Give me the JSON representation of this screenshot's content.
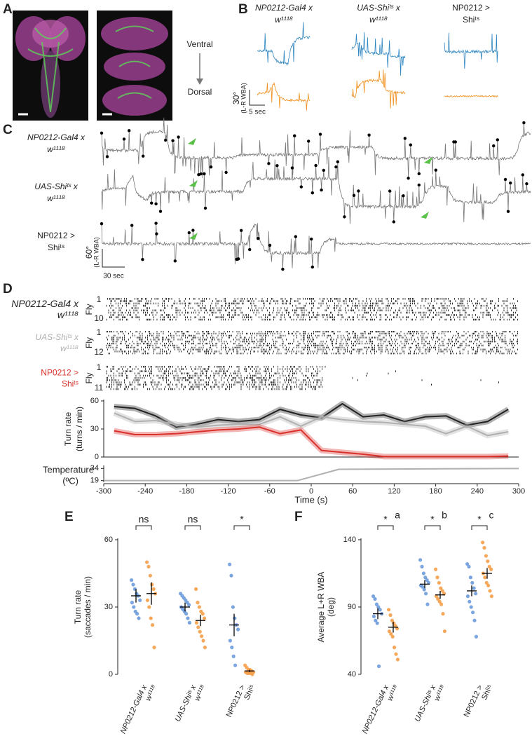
{
  "panel_labels": [
    "A",
    "B",
    "C",
    "D",
    "E",
    "F"
  ],
  "orientation": {
    "top": "Ventral",
    "bottom": "Dorsal"
  },
  "genotypes": [
    {
      "line1": "NP0212-Gal4 x",
      "line2": "w¹¹¹⁸"
    },
    {
      "line1": "UAS-Shiᵗˢ x",
      "line2": "w¹¹¹⁸"
    },
    {
      "line1": "NP0212 >",
      "line2": "Shiᵗˢ"
    }
  ],
  "panel_b_scale": {
    "amplitude": "30°",
    "unit": "(L-R WBA)",
    "time": "5 sec"
  },
  "panel_c_scale": {
    "amplitude": "60°",
    "unit": "(L-R WBA)",
    "time": "30 sec"
  },
  "raster": {
    "axis_label": "Fly",
    "rows": [
      {
        "first": "1",
        "last": "10"
      },
      {
        "first": "1",
        "last": "12"
      },
      {
        "first": "1",
        "last": "11"
      }
    ]
  },
  "chart_data": [
    {
      "type": "line",
      "ylabel": "Turn rate",
      "ylabel_unit": "(turns / min)",
      "x": [
        -285,
        -255,
        -225,
        -195,
        -165,
        -135,
        -105,
        -75,
        -45,
        -15,
        15,
        45,
        75,
        105,
        135,
        165,
        195,
        225,
        255,
        285
      ],
      "xlim": [
        -300,
        300
      ],
      "ylim": [
        0,
        60
      ],
      "yticks": [
        0,
        30,
        60
      ],
      "series": [
        {
          "color": "#222222",
          "values": [
            54,
            52,
            44,
            32,
            35,
            40,
            38,
            40,
            51,
            45,
            42,
            57,
            43,
            45,
            38,
            43,
            44,
            34,
            38,
            51
          ]
        },
        {
          "color": "#b0b0b0",
          "values": [
            47,
            38,
            39,
            35,
            32,
            34,
            35,
            35,
            43,
            33,
            43,
            40,
            38,
            37,
            35,
            33,
            25,
            33,
            23,
            27
          ]
        },
        {
          "color": "#d9302c",
          "values": [
            28,
            24,
            24,
            25,
            27,
            29,
            30,
            32,
            25,
            29,
            7,
            5,
            3,
            0.5,
            0.5,
            0.5,
            0.5,
            0.5,
            0.5,
            1
          ]
        }
      ]
    },
    {
      "type": "line",
      "ylabel": "Temperature",
      "ylabel_unit": "(ºC)",
      "xlabel": "Time (s)",
      "x": [
        -300,
        -20,
        40,
        300
      ],
      "xlim": [
        -300,
        300
      ],
      "xticks": [
        -300,
        -240,
        -180,
        -120,
        -60,
        0,
        60,
        120,
        180,
        240,
        300
      ],
      "ylim": [
        17,
        36
      ],
      "yticks": [
        19,
        34
      ],
      "series": [
        {
          "color": "#b0b0b0",
          "values": [
            19,
            19,
            33,
            34
          ]
        }
      ]
    },
    {
      "type": "strip",
      "ylabel": "Turn rate",
      "ylabel_unit": "(saccades / min)",
      "ylim": [
        0,
        60
      ],
      "yticks": [
        0,
        30,
        60
      ],
      "groups": [
        {
          "significance": "ns",
          "series": [
            {
              "color": "#6d9bdc",
              "values": [
                42,
                40,
                38,
                36,
                35,
                33,
                32,
                30,
                28,
                27,
                25
              ],
              "mean": 35,
              "sem": 3
            },
            {
              "color": "#f5a04a",
              "values": [
                50,
                48,
                44,
                40,
                38,
                36,
                33,
                30,
                25,
                22,
                12
              ],
              "mean": 36,
              "sem": 5
            }
          ]
        },
        {
          "significance": "ns",
          "series": [
            {
              "color": "#6d9bdc",
              "values": [
                36,
                35,
                34,
                33,
                32,
                31,
                30,
                29,
                28,
                27,
                25,
                23
              ],
              "mean": 30,
              "sem": 2
            },
            {
              "color": "#f5a04a",
              "values": [
                38,
                32,
                30,
                28,
                27,
                25,
                23,
                21,
                19,
                17,
                15,
                12
              ],
              "mean": 24,
              "sem": 2.5
            }
          ]
        },
        {
          "significance": "*",
          "series": [
            {
              "color": "#6d9bdc",
              "values": [
                49,
                44,
                30,
                25,
                22,
                20,
                15,
                12,
                8,
                4
              ],
              "mean": 22,
              "sem": 5
            },
            {
              "color": "#f5a04a",
              "values": [
                4,
                3,
                2,
                2,
                1.5,
                1,
                1,
                0.5,
                0.5,
                0.5,
                0
              ],
              "mean": 1.5,
              "sem": 0.5
            }
          ]
        }
      ]
    },
    {
      "type": "strip",
      "ylabel": "Average L+R WBA",
      "ylabel_unit": "(deg)",
      "ylim": [
        40,
        140
      ],
      "yticks": [
        40,
        90,
        140
      ],
      "groups": [
        {
          "significance": "*",
          "letter": "a",
          "series": [
            {
              "color": "#6d9bdc",
              "values": [
                98,
                96,
                92,
                90,
                88,
                85,
                83,
                80,
                78,
                46
              ],
              "mean": 85,
              "sem": 4
            },
            {
              "color": "#f5a04a",
              "values": [
                88,
                84,
                80,
                78,
                76,
                74,
                72,
                70,
                68,
                60,
                55,
                51
              ],
              "mean": 75,
              "sem": 4
            }
          ]
        },
        {
          "significance": "*",
          "letter": "b",
          "series": [
            {
              "color": "#6d9bdc",
              "values": [
                125,
                120,
                115,
                112,
                110,
                108,
                106,
                105,
                103,
                100,
                92
              ],
              "mean": 107,
              "sem": 3
            },
            {
              "color": "#f5a04a",
              "values": [
                118,
                112,
                108,
                104,
                102,
                100,
                98,
                96,
                94,
                92,
                85,
                72
              ],
              "mean": 99,
              "sem": 3
            }
          ]
        },
        {
          "significance": "*",
          "letter": "c",
          "series": [
            {
              "color": "#6d9bdc",
              "values": [
                122,
                120,
                112,
                108,
                104,
                100,
                98,
                94,
                90,
                86,
                80,
                68
              ],
              "mean": 102,
              "sem": 4
            },
            {
              "color": "#f5a04a",
              "values": [
                138,
                134,
                128,
                124,
                120,
                118,
                115,
                112,
                108,
                106,
                102,
                98
              ],
              "mean": 115,
              "sem": 4
            }
          ]
        }
      ]
    }
  ]
}
